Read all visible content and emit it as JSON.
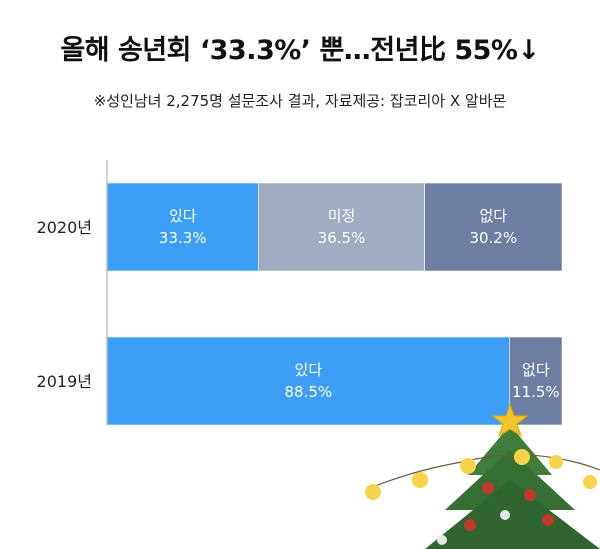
{
  "title": "올해 송년회 ‘33.3%’ 뿐…전년比 55%↓",
  "subtitle": "※성인남녀 2,275명 설문조사 결과, 자료제공: 잡코리아 X 알바몬",
  "chart_data": {
    "type": "bar",
    "orientation": "horizontal",
    "stacked": true,
    "unit": "%",
    "categories": [
      "2020년",
      "2019년"
    ],
    "series": [
      {
        "name": "있다",
        "values": [
          33.3,
          88.5
        ],
        "color": "#3d9ef5"
      },
      {
        "name": "미정",
        "values": [
          36.5,
          null
        ],
        "color": "#a0abc0"
      },
      {
        "name": "없다",
        "values": [
          30.2,
          11.5
        ],
        "color": "#6e7ea2"
      }
    ],
    "labels": [
      [
        "33.3%",
        "88.5%"
      ],
      [
        "36.5%",
        ""
      ],
      [
        "30.2%",
        "11.5%"
      ]
    ],
    "xlim": [
      0,
      100
    ],
    "grid": false,
    "legend": "none"
  }
}
